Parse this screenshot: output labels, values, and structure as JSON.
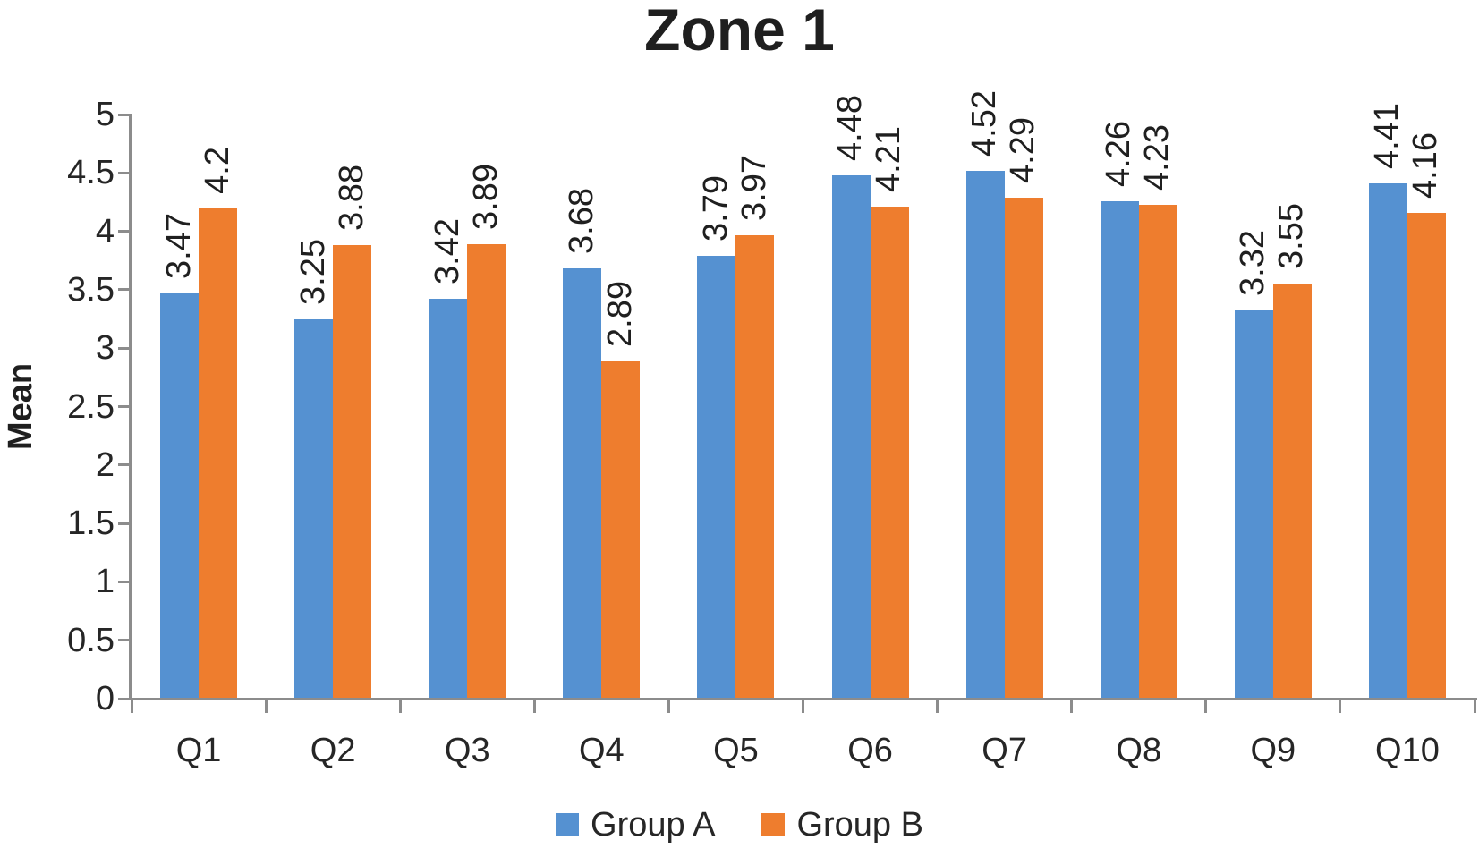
{
  "chart_data": {
    "type": "bar",
    "title": "Zone 1",
    "xlabel": "",
    "ylabel": "Mean",
    "ylim": [
      0,
      5
    ],
    "ytick_step": 0.5,
    "ytick_labels": [
      "0",
      "0.5",
      "1",
      "1.5",
      "2",
      "2.5",
      "3",
      "3.5",
      "4",
      "4.5",
      "5"
    ],
    "grid": false,
    "legend_position": "bottom",
    "value_labels_rotated": true,
    "categories": [
      "Q1",
      "Q2",
      "Q3",
      "Q4",
      "Q5",
      "Q6",
      "Q7",
      "Q8",
      "Q9",
      "Q10"
    ],
    "series": [
      {
        "name": "Group A",
        "color": "#5591D1",
        "values": [
          3.47,
          3.25,
          3.42,
          3.68,
          3.79,
          4.48,
          4.52,
          4.26,
          3.32,
          4.41
        ],
        "value_labels": [
          "3.47",
          "3.25",
          "3.42",
          "3.68",
          "3.79",
          "4.48",
          "4.52",
          "4.26",
          "3.32",
          "4.41"
        ]
      },
      {
        "name": "Group B",
        "color": "#EE7D2E",
        "values": [
          4.2,
          3.88,
          3.89,
          2.89,
          3.97,
          4.21,
          4.29,
          4.23,
          3.55,
          4.16
        ],
        "value_labels": [
          "4.2",
          "3.88",
          "3.89",
          "2.89",
          "3.97",
          "4.21",
          "4.29",
          "4.23",
          "3.55",
          "4.16"
        ]
      }
    ],
    "colors": {
      "axis": "#8C8C8C",
      "text": "#1F1F1F",
      "background": "#FFFFFF"
    }
  }
}
